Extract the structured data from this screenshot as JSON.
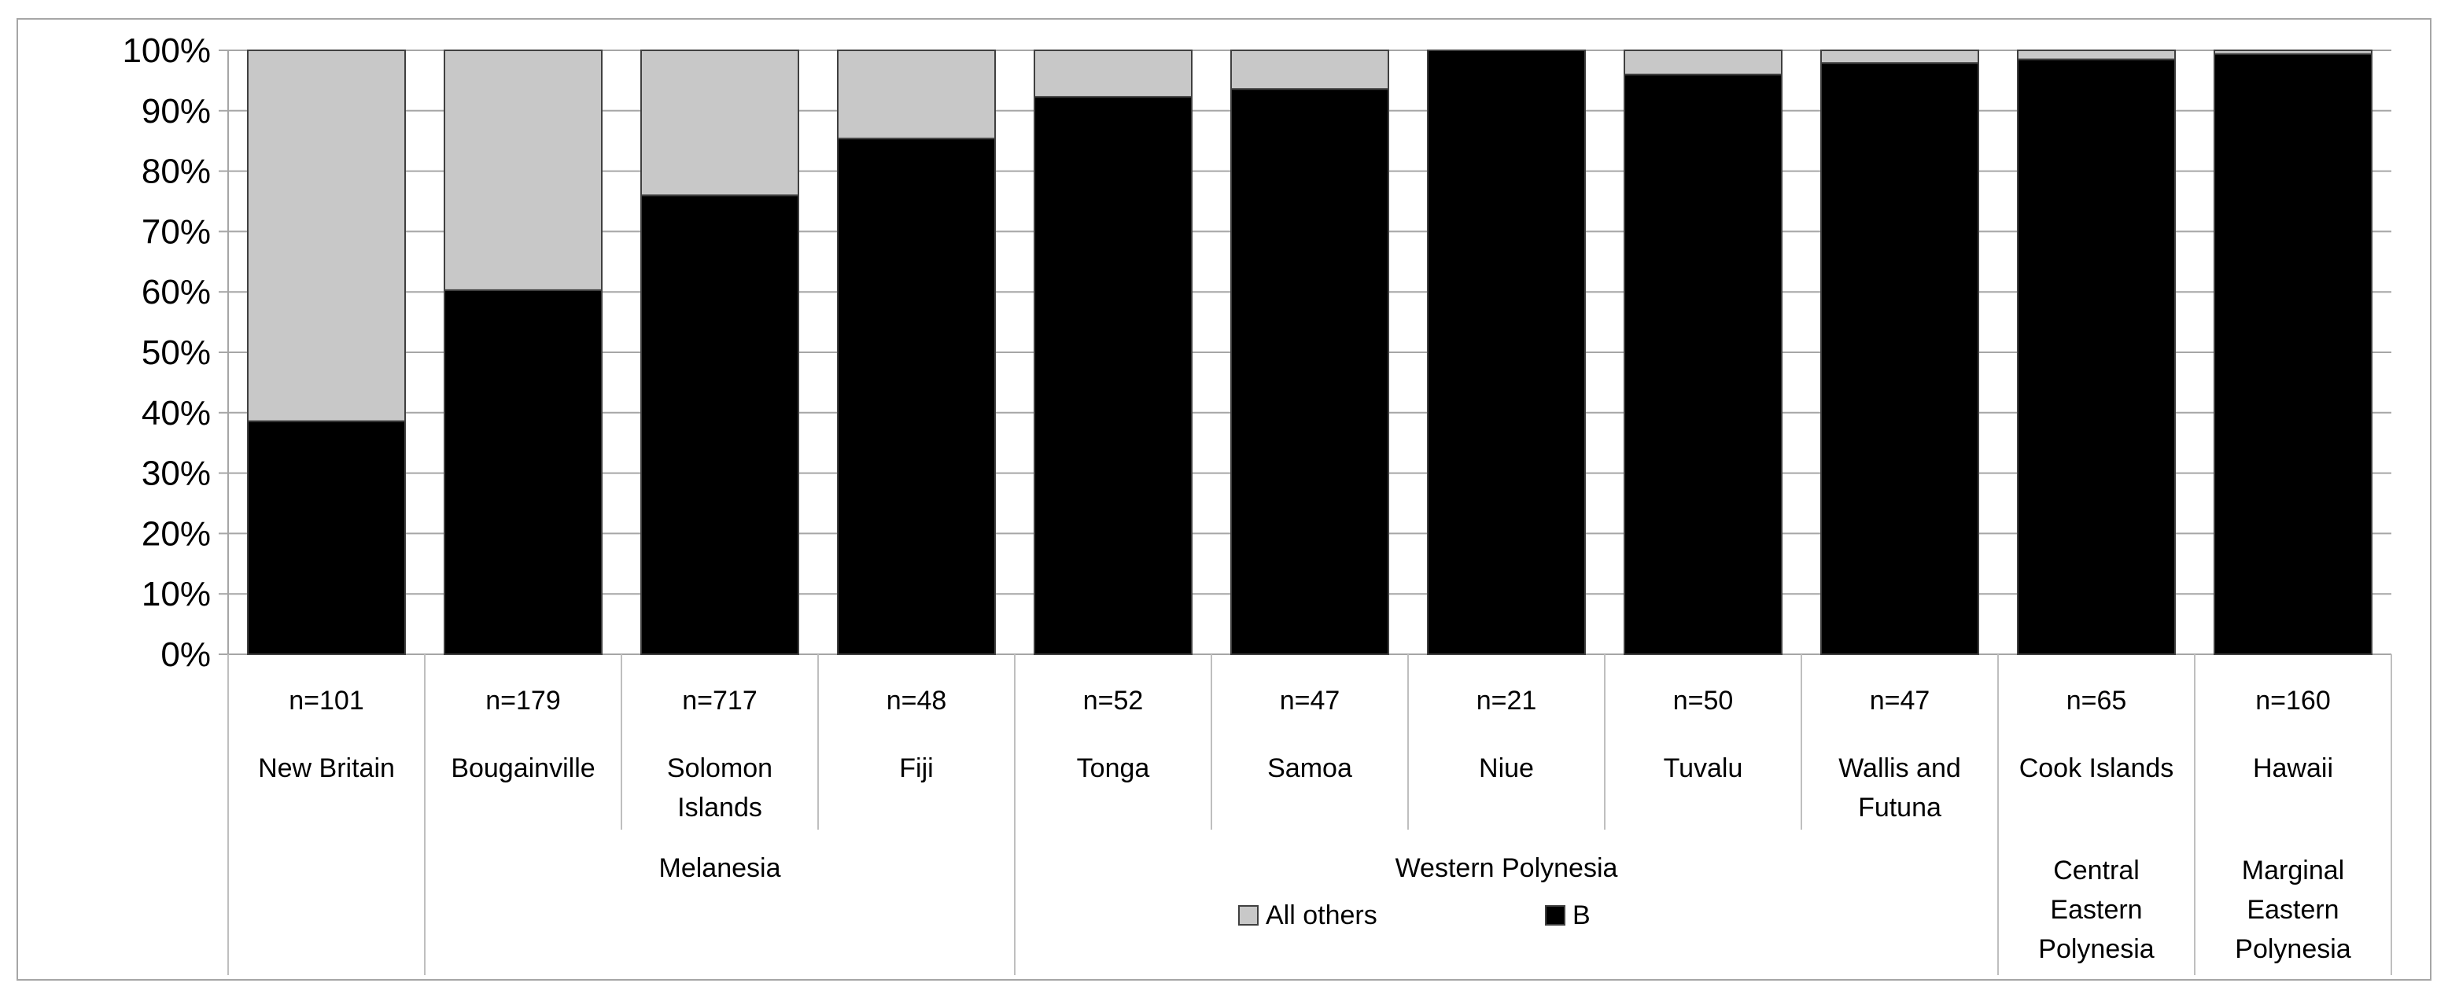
{
  "chart_data": {
    "type": "bar",
    "stacked": true,
    "percent_axis": true,
    "categories": [
      "New Britain",
      "Bougainville",
      "Solomon Islands",
      "Fiji",
      "Tonga",
      "Samoa",
      "Niue",
      "Tuvalu",
      "Wallis and Futuna",
      "Cook Islands",
      "Hawaii"
    ],
    "category_lines": [
      [
        "New Britain"
      ],
      [
        "Bougainville"
      ],
      [
        "Solomon",
        "Islands"
      ],
      [
        "Fiji"
      ],
      [
        "Tonga"
      ],
      [
        "Samoa"
      ],
      [
        "Niue"
      ],
      [
        "Tuvalu"
      ],
      [
        "Wallis and",
        "Futuna"
      ],
      [
        "Cook Islands"
      ],
      [
        "Hawaii"
      ]
    ],
    "sample_sizes": [
      "n=101",
      "n=179",
      "n=717",
      "n=48",
      "n=52",
      "n=47",
      "n=21",
      "n=50",
      "n=47",
      "n=65",
      "n=160"
    ],
    "groups": [
      {
        "lines": [],
        "span": [
          0,
          0
        ]
      },
      {
        "lines": [
          "Melanesia"
        ],
        "span": [
          1,
          3
        ]
      },
      {
        "lines": [
          "Western Polynesia"
        ],
        "span": [
          4,
          8
        ]
      },
      {
        "lines": [
          "Central",
          "Eastern",
          "Polynesia"
        ],
        "span": [
          9,
          9
        ]
      },
      {
        "lines": [
          "Marginal",
          "Eastern",
          "Polynesia"
        ],
        "span": [
          10,
          10
        ]
      }
    ],
    "series": [
      {
        "name": "B",
        "color": "#000000",
        "values": [
          38.6,
          60.3,
          76.0,
          85.4,
          92.3,
          93.6,
          100,
          96.0,
          97.9,
          98.5,
          99.4
        ]
      },
      {
        "name": "All others",
        "color": "#c8c8c8",
        "values": [
          61.4,
          39.7,
          24.0,
          14.6,
          7.7,
          6.4,
          0,
          4.0,
          2.1,
          1.5,
          0.6
        ]
      }
    ],
    "legend": [
      {
        "name": "All others",
        "color": "#c8c8c8"
      },
      {
        "name": "B",
        "color": "#000000"
      }
    ],
    "yticks": [
      "0%",
      "10%",
      "20%",
      "30%",
      "40%",
      "50%",
      "60%",
      "70%",
      "80%",
      "90%",
      "100%"
    ],
    "ylim": [
      0,
      100
    ],
    "grid": true,
    "legend_position": "bottom"
  }
}
